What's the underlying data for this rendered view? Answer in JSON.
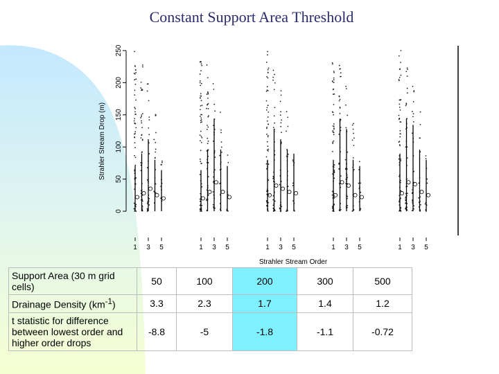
{
  "title": "Constant Support Area Threshold",
  "chart_data": {
    "type": "scatter",
    "title": "Constant Support Area Threshold",
    "xlabel": "Strahler Stream Order",
    "ylabel": "Strahler Stream Drop (m)",
    "ylim": [
      0,
      250
    ],
    "yticks": [
      "0",
      "50",
      "100",
      "150",
      "200",
      "250"
    ],
    "xticks": [
      "1",
      "3",
      "5"
    ],
    "panels": [
      {
        "support_area": "50",
        "orders": [
          1,
          2,
          3,
          4,
          5
        ],
        "median_drops": [
          22,
          28,
          35,
          25,
          20
        ]
      },
      {
        "support_area": "100",
        "orders": [
          1,
          2,
          3,
          4,
          5
        ],
        "median_drops": [
          20,
          30,
          45,
          30,
          22
        ]
      },
      {
        "support_area": "200",
        "orders": [
          1,
          2,
          3,
          4,
          5
        ],
        "median_drops": [
          25,
          40,
          35,
          30,
          28
        ]
      },
      {
        "support_area": "300",
        "orders": [
          1,
          2,
          3,
          4,
          5
        ],
        "median_drops": [
          25,
          45,
          40,
          25,
          22
        ]
      },
      {
        "support_area": "500",
        "orders": [
          1,
          2,
          3,
          4,
          5
        ],
        "median_drops": [
          28,
          45,
          42,
          30,
          25
        ]
      }
    ]
  },
  "table": {
    "rows": [
      {
        "label": "Support Area (30 m grid cells)",
        "values": [
          "50",
          "100",
          "200",
          "300",
          "500"
        ]
      },
      {
        "label_main": "Drainage Density (km",
        "label_sup": "-1",
        "label_end": ")",
        "values": [
          "3.3",
          "2.3",
          "1.7",
          "1.4",
          "1.2"
        ]
      },
      {
        "label": "t statistic for difference between lowest order and higher order drops",
        "values": [
          "-8.8",
          "-5",
          "-1.8",
          "-1.1",
          "-0.72"
        ]
      }
    ],
    "highlight_color": "#7ff0ff"
  },
  "colors": {
    "title": "#2b2b6b",
    "wave_top": "#c9ecff",
    "wave_bottom": "#f4ffd0"
  }
}
